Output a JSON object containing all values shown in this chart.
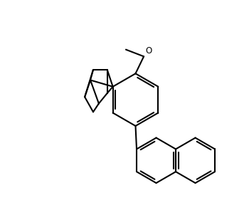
{
  "background_color": "#ffffff",
  "line_color": "#000000",
  "line_width": 1.5,
  "figure_width": 3.5,
  "figure_height": 2.88,
  "dpi": 100
}
